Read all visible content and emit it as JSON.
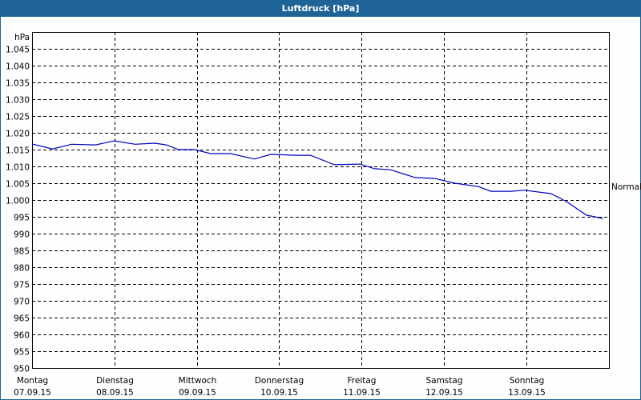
{
  "window": {
    "title": "Luftdruck [hPa]"
  },
  "colors": {
    "titlebar": "#1f6496",
    "line": "#0000c0",
    "grid": "#000000",
    "background": "#fdfefd"
  },
  "chart_data": {
    "type": "line",
    "title": "Luftdruck [hPa]",
    "ylabel": "hPa",
    "xlabel": "",
    "ylim": [
      950,
      1047
    ],
    "grid": true,
    "y_ticks": [
      "950",
      "955",
      "960",
      "965",
      "970",
      "975",
      "980",
      "985",
      "990",
      "995",
      "1.000",
      "1.005",
      "1.010",
      "1.015",
      "1.020",
      "1.025",
      "1.030",
      "1.035",
      "1.040",
      "1.045"
    ],
    "x_ticks": [
      {
        "day": "Montag",
        "date": "07.09.15"
      },
      {
        "day": "Dienstag",
        "date": "08.09.15"
      },
      {
        "day": "Mittwoch",
        "date": "09.09.15"
      },
      {
        "day": "Donnerstag",
        "date": "10.09.15"
      },
      {
        "day": "Freitag",
        "date": "11.09.15"
      },
      {
        "day": "Samstag",
        "date": "12.09.15"
      },
      {
        "day": "Sonntag",
        "date": "13.09.15"
      }
    ],
    "reference_line": {
      "label": "Normal",
      "value": 1000
    },
    "series": [
      {
        "name": "Luftdruck",
        "x_days": [
          0.0,
          0.25,
          0.48,
          0.77,
          1.0,
          1.25,
          1.49,
          1.63,
          1.78,
          1.97,
          2.17,
          2.41,
          2.7,
          2.9,
          3.19,
          3.38,
          3.67,
          3.98,
          4.16,
          4.35,
          4.65,
          4.89,
          5.13,
          5.42,
          5.57,
          5.81,
          5.98,
          6.3,
          6.49,
          6.73,
          6.93
        ],
        "values": [
          1016.7,
          1015.2,
          1016.6,
          1016.4,
          1017.6,
          1016.6,
          1016.9,
          1016.4,
          1015.0,
          1015.0,
          1013.8,
          1013.8,
          1012.2,
          1013.6,
          1013.3,
          1013.3,
          1010.5,
          1010.7,
          1009.3,
          1009.0,
          1006.7,
          1006.4,
          1005.0,
          1004.0,
          1002.6,
          1002.6,
          1002.9,
          1001.9,
          999.5,
          995.5,
          994.5
        ]
      }
    ]
  }
}
